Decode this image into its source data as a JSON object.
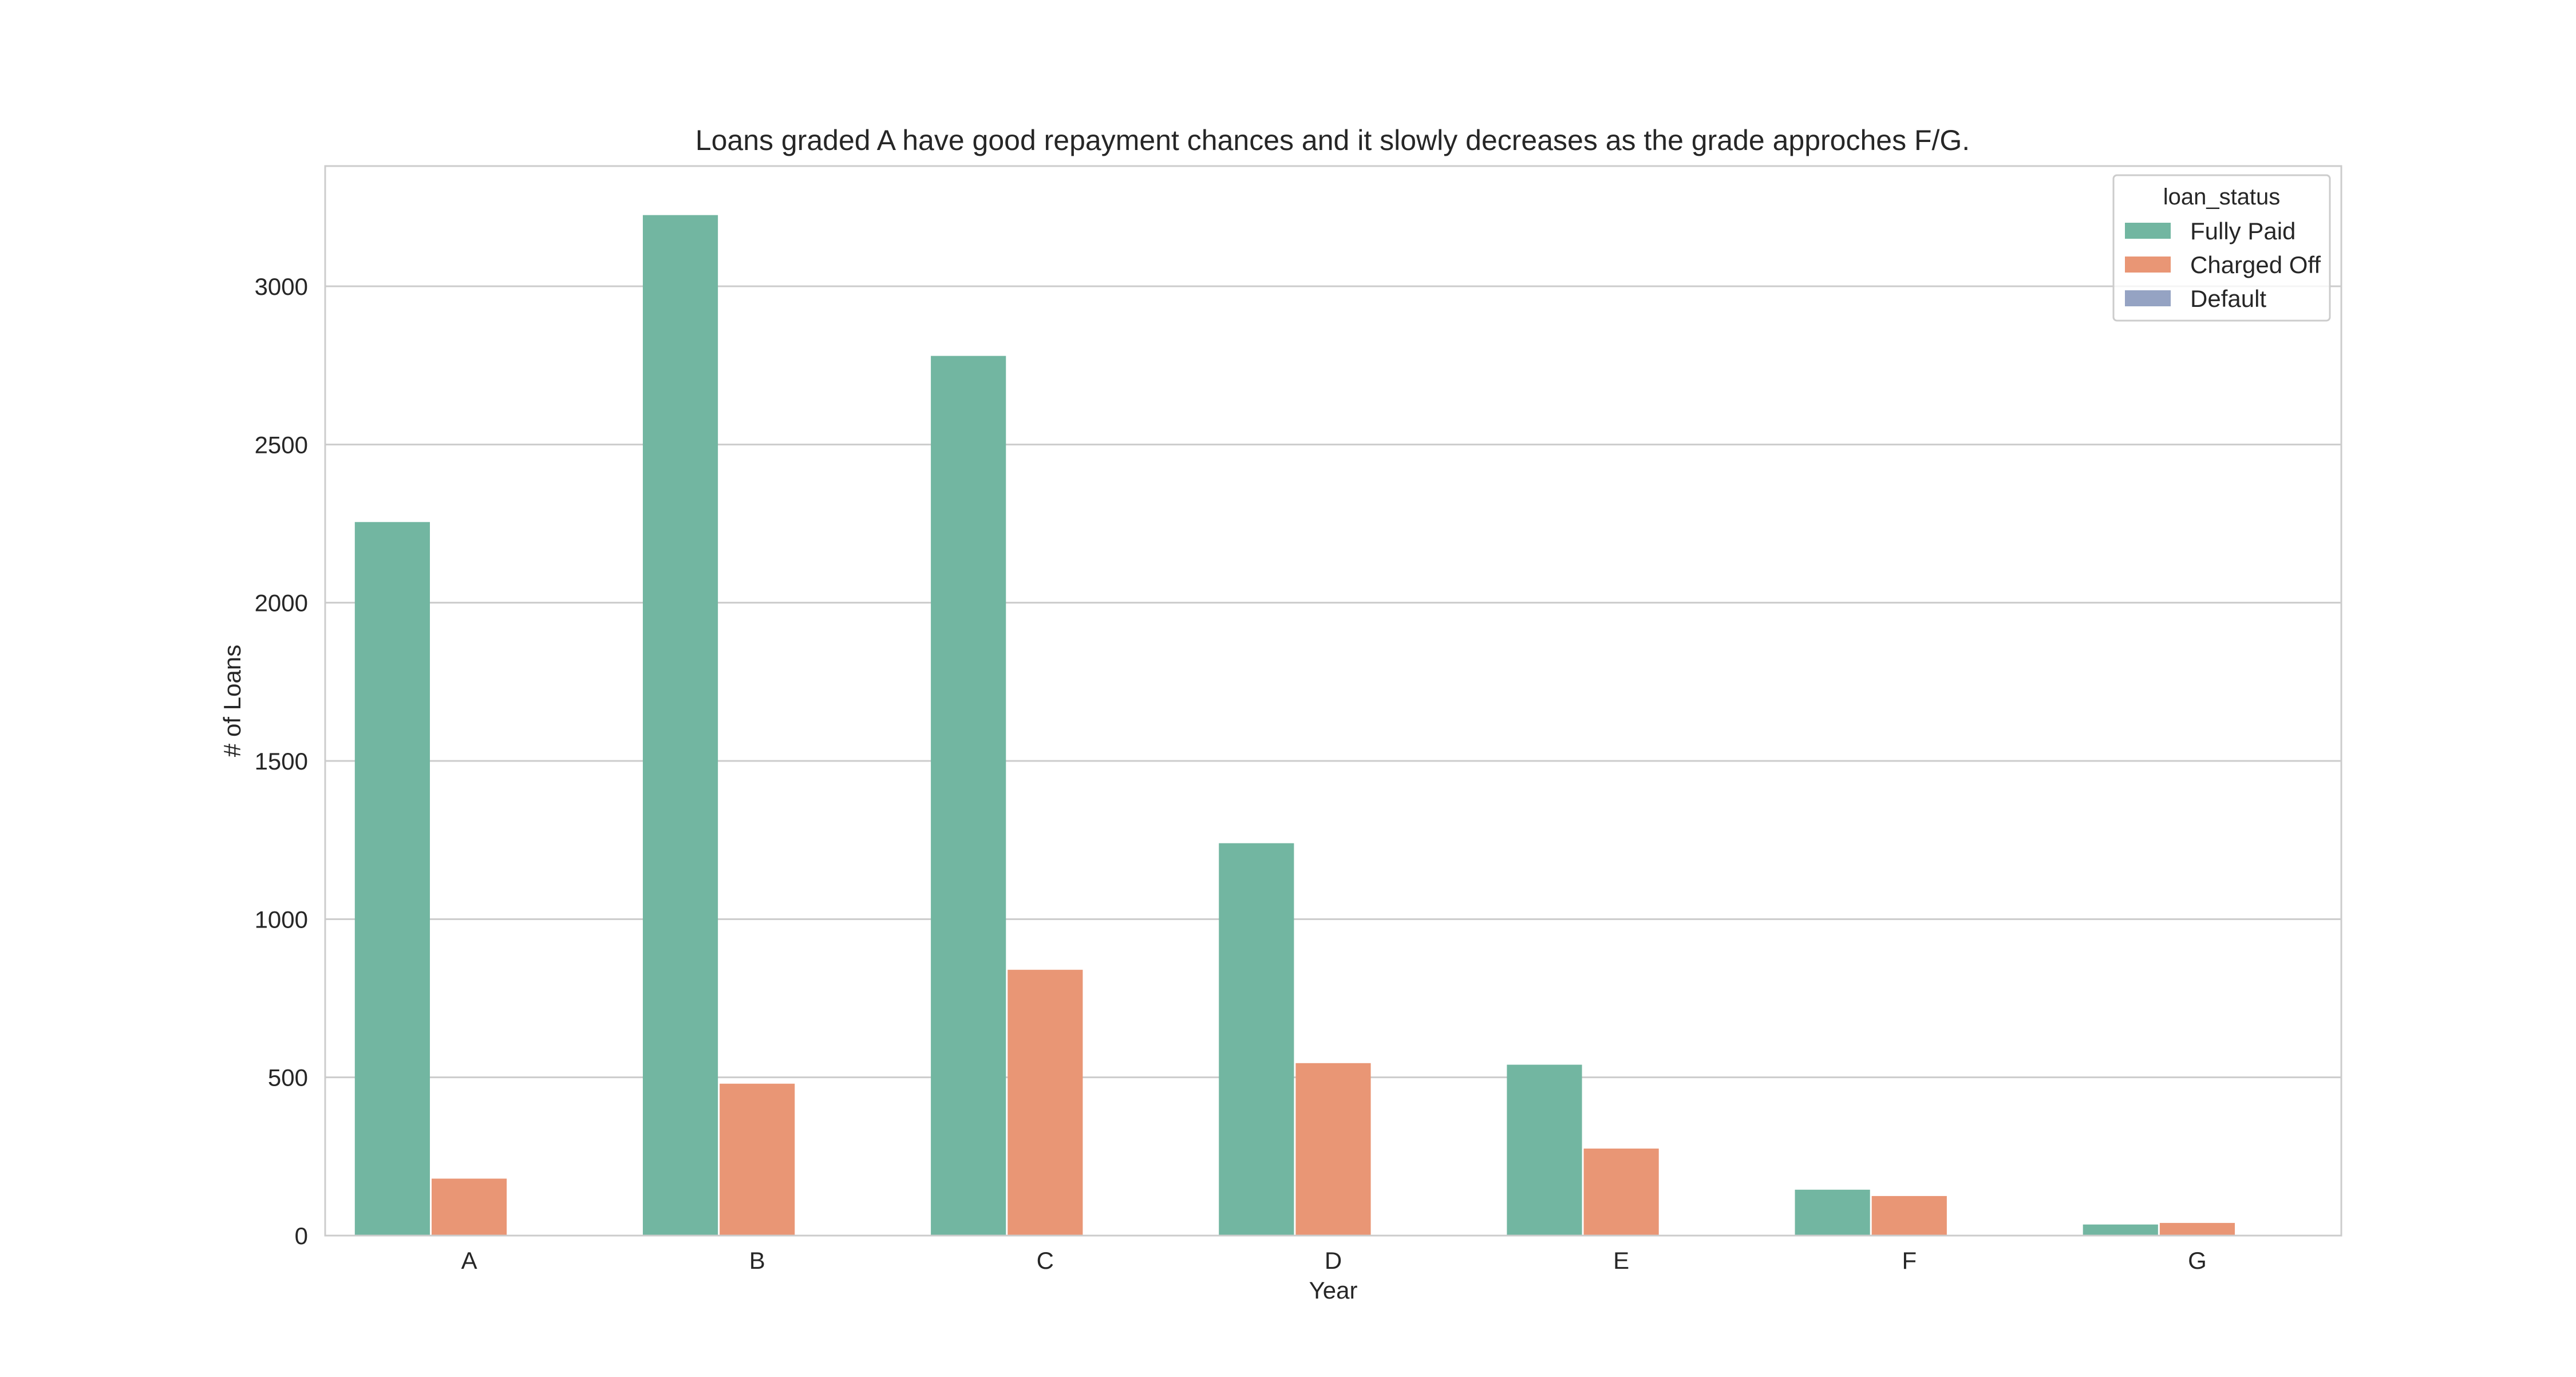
{
  "chart_data": {
    "type": "bar",
    "title": "Loans graded A have good repayment chances and it slowly decreases as the grade approches F/G.",
    "xlabel": "Year",
    "ylabel": "# of Loans",
    "categories": [
      "A",
      "B",
      "C",
      "D",
      "E",
      "F",
      "G"
    ],
    "ylim": [
      0,
      3380
    ],
    "yticks": [
      0,
      500,
      1000,
      1500,
      2000,
      2500,
      3000
    ],
    "grid": "horizontal",
    "legend": {
      "title": "loan_status",
      "placement": "top-right"
    },
    "series": [
      {
        "name": "Fully Paid",
        "color": "#72b6a1",
        "values": [
          2255,
          3225,
          2780,
          1240,
          540,
          145,
          35
        ]
      },
      {
        "name": "Charged Off",
        "color": "#e99675",
        "values": [
          180,
          480,
          840,
          545,
          275,
          125,
          40
        ]
      },
      {
        "name": "Default",
        "color": "#95a3c3",
        "values": [
          0,
          0,
          0,
          0,
          0,
          0,
          0
        ]
      }
    ]
  }
}
